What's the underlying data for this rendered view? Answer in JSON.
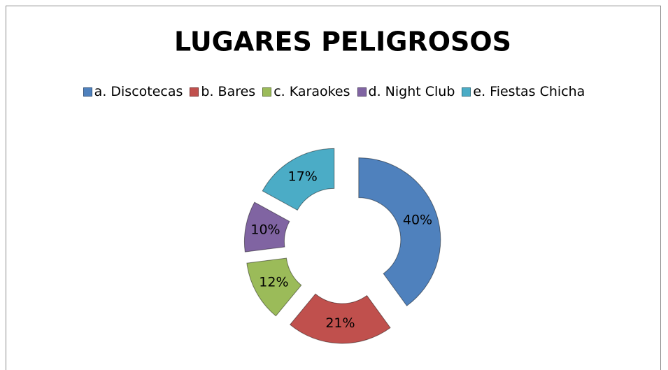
{
  "chart_data": {
    "type": "doughnut",
    "title": "LUGARES PELIGROSOS",
    "categories": [
      "a. Discotecas",
      "b. Bares",
      "c. Karaokes",
      "d. Night Club",
      "e. Fiestas Chicha"
    ],
    "values": [
      40,
      21,
      12,
      10,
      17
    ],
    "value_labels": [
      "40%",
      "21%",
      "12%",
      "10%",
      "17%"
    ],
    "colors": [
      "#4f81bd",
      "#c0504d",
      "#9bbb59",
      "#8064a2",
      "#4bacc6"
    ],
    "legend": "top"
  }
}
